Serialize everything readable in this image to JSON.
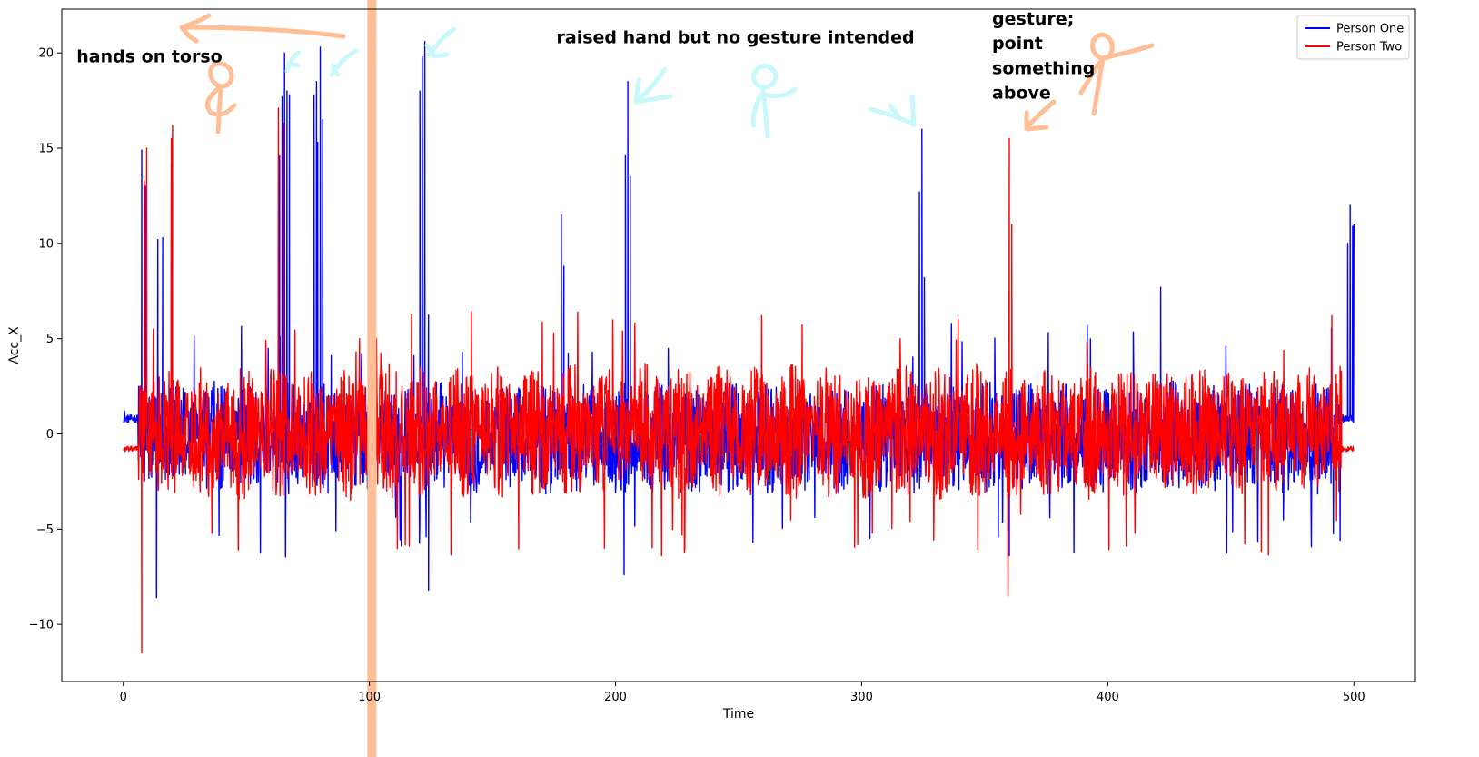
{
  "chart_data": {
    "type": "line",
    "xlabel": "Time",
    "ylabel": "Acc_X",
    "xlim": [
      -25,
      525
    ],
    "ylim": [
      -13.0,
      22.3
    ],
    "xticks": [
      0,
      100,
      200,
      300,
      400,
      500
    ],
    "yticks": [
      -10,
      -5,
      0,
      5,
      10,
      15,
      20
    ],
    "legend_position": "top-right",
    "grid": false,
    "series": [
      {
        "name": "Person One",
        "color": "#0000ff",
        "baseline_x_range": [
          0,
          500
        ],
        "noise_amplitude": 3.0,
        "peaks": [
          {
            "x": 0.5,
            "y": 1.2
          },
          {
            "x": 7.5,
            "y": 14.9
          },
          {
            "x": 9,
            "y": 13.0
          },
          {
            "x": 13.5,
            "y": -8.6
          },
          {
            "x": 14,
            "y": 10.2
          },
          {
            "x": 16,
            "y": 10.3
          },
          {
            "x": 19.5,
            "y": 14.1
          },
          {
            "x": 63.5,
            "y": 14.6
          },
          {
            "x": 64.5,
            "y": 17.7
          },
          {
            "x": 65.5,
            "y": 20.0
          },
          {
            "x": 66.5,
            "y": 18.0
          },
          {
            "x": 67.5,
            "y": 17.8
          },
          {
            "x": 77.5,
            "y": 17.8
          },
          {
            "x": 78.5,
            "y": 18.5
          },
          {
            "x": 79,
            "y": 15.3
          },
          {
            "x": 80,
            "y": 20.3
          },
          {
            "x": 81,
            "y": 16.5
          },
          {
            "x": 120.5,
            "y": 18.0
          },
          {
            "x": 121.5,
            "y": 19.8
          },
          {
            "x": 122.5,
            "y": 20.6
          },
          {
            "x": 124,
            "y": -8.2
          },
          {
            "x": 178,
            "y": 11.5
          },
          {
            "x": 179,
            "y": 8.8
          },
          {
            "x": 203.5,
            "y": -7.4
          },
          {
            "x": 204,
            "y": 14.6
          },
          {
            "x": 205,
            "y": 18.5
          },
          {
            "x": 206,
            "y": 13.5
          },
          {
            "x": 323.5,
            "y": 12.7
          },
          {
            "x": 324.5,
            "y": 16.0
          },
          {
            "x": 325.5,
            "y": 8.2
          },
          {
            "x": 360,
            "y": -6.4
          },
          {
            "x": 421.5,
            "y": 7.7
          },
          {
            "x": 497.5,
            "y": 10.0
          },
          {
            "x": 498.5,
            "y": 12.0
          },
          {
            "x": 499.5,
            "y": 10.9
          },
          {
            "x": 500,
            "y": 11.0
          }
        ]
      },
      {
        "name": "Person Two",
        "color": "#ff0000",
        "baseline_x_range": [
          0,
          500
        ],
        "noise_amplitude": 3.6,
        "peaks": [
          {
            "x": 7.5,
            "y": -11.5
          },
          {
            "x": 8.5,
            "y": 13.3
          },
          {
            "x": 9.5,
            "y": 15.0
          },
          {
            "x": 19.5,
            "y": 15.5
          },
          {
            "x": 20,
            "y": 16.2
          },
          {
            "x": 63,
            "y": 17.1
          },
          {
            "x": 65,
            "y": 16.3
          },
          {
            "x": 359.5,
            "y": -8.5
          },
          {
            "x": 360,
            "y": 15.5
          },
          {
            "x": 361,
            "y": 11.0
          }
        ]
      }
    ],
    "annotations": [
      {
        "text": "hands on torso",
        "x": -19,
        "y": 19.5
      },
      {
        "text": "raised hand but no gesture intended",
        "x": 176,
        "y": 20.5
      },
      {
        "text": "gesture;",
        "x": 353,
        "y": 21.5
      },
      {
        "text": "point",
        "x": 353,
        "y": 20.2
      },
      {
        "text": "something",
        "x": 353,
        "y": 18.9
      },
      {
        "text": "above",
        "x": 353,
        "y": 17.6
      }
    ],
    "highlight_band": {
      "x": 101,
      "color": "#ffbe96"
    }
  }
}
